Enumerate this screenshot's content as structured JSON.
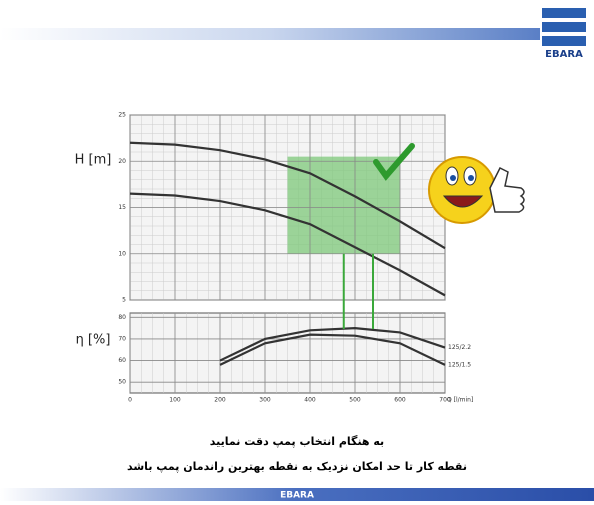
{
  "slide": {
    "logo": "EBARA",
    "footer": "EBARA",
    "notes": [
      "به هنگام انتخاب پمپ دقت نمایید",
      "نقطه کار تا حد امکان نزدیک به نقطه  بهترین راندمان پمپ باشد"
    ]
  },
  "chart_data": {
    "type": "line",
    "grid": true,
    "x": [
      0,
      100,
      200,
      300,
      400,
      500,
      600,
      700
    ],
    "x_label": "Q [l/min]",
    "xlim": [
      0,
      700
    ],
    "xticks": [
      0,
      100,
      200,
      300,
      400,
      500,
      600,
      700
    ],
    "y_label": "H [m]",
    "ylim": [
      5,
      25
    ],
    "yticks": [
      5,
      10,
      15,
      20,
      25
    ],
    "series": [
      {
        "name": "125/2.2",
        "color": "#333333",
        "values": [
          22,
          21.8,
          21.2,
          20.2,
          18.7,
          16.2,
          13.5,
          10.6
        ]
      },
      {
        "name": "125/1.5",
        "color": "#333333",
        "values": [
          16.5,
          16.3,
          15.7,
          14.7,
          13.2,
          10.7,
          8.2,
          5.5
        ]
      }
    ],
    "eff_label": "η [%]",
    "efflim": [
      45,
      82
    ],
    "effticks": [
      50,
      60,
      70,
      80
    ],
    "efficiency": [
      {
        "name": "125/2.2",
        "color": "#333333",
        "values": [
          null,
          null,
          60,
          70,
          74,
          75,
          73,
          66
        ]
      },
      {
        "name": "125/1.5",
        "color": "#333333",
        "values": [
          null,
          null,
          58,
          68,
          72,
          71.5,
          68,
          58
        ]
      }
    ],
    "recommended_q": [
      350,
      600
    ],
    "recommended_h": [
      10,
      20.5
    ],
    "region_color": "#7dc87a",
    "operating_q": [
      475,
      540
    ]
  }
}
